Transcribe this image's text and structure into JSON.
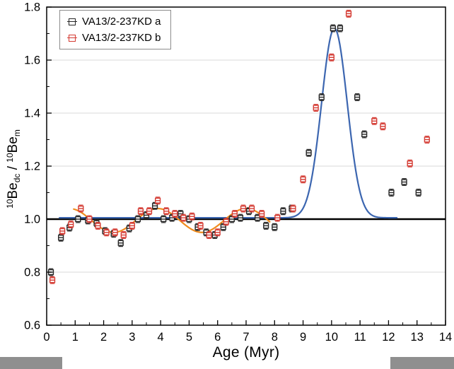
{
  "labels": {
    "ylabel": {
      "sup1": "10",
      "base1": "Be",
      "sub1": "dc",
      "sep": " / ",
      "sup2": "10",
      "base2": "Be",
      "sub2": "m"
    }
  },
  "chart_data": {
    "type": "scatter",
    "title": "",
    "xlabel": "Age (Myr)",
    "ylabel": "10Be_dc / 10Be_m",
    "xlim": [
      0,
      14
    ],
    "ylim": [
      0.6,
      1.8
    ],
    "xticks": [
      0,
      1,
      2,
      3,
      4,
      5,
      6,
      7,
      8,
      9,
      10,
      11,
      12,
      13,
      14
    ],
    "yticks": [
      0.6,
      0.8,
      1.0,
      1.2,
      1.4,
      1.6,
      1.8
    ],
    "ytick_labels": [
      "0.6",
      "0.8",
      "1.0",
      "1.2",
      "1.4",
      "1.6",
      "1.8"
    ],
    "grid": "horizontal",
    "legend_position": "top-left",
    "reference_line": {
      "y": 1.0,
      "color": "#000000",
      "width": 2.4
    },
    "colors": {
      "grid": "#d9d9d9",
      "frame": "#000000",
      "artifact": "#8f8f8f"
    },
    "series": [
      {
        "name": "VA13/2-237KD a",
        "color": "#262626",
        "marker": "half-open-square",
        "yerr": 0.013,
        "points": [
          [
            0.15,
            0.8
          ],
          [
            0.5,
            0.93
          ],
          [
            0.8,
            0.968
          ],
          [
            1.1,
            1.0
          ],
          [
            1.45,
            0.995
          ],
          [
            1.75,
            0.985
          ],
          [
            2.05,
            0.955
          ],
          [
            2.35,
            0.945
          ],
          [
            2.6,
            0.91
          ],
          [
            2.9,
            0.965
          ],
          [
            3.2,
            1.0
          ],
          [
            3.5,
            1.015
          ],
          [
            3.8,
            1.05
          ],
          [
            4.1,
            1.0
          ],
          [
            4.4,
            1.005
          ],
          [
            4.7,
            1.02
          ],
          [
            5.0,
            1.0
          ],
          [
            5.3,
            0.97
          ],
          [
            5.6,
            0.95
          ],
          [
            5.9,
            0.94
          ],
          [
            6.2,
            0.97
          ],
          [
            6.5,
            1.0
          ],
          [
            6.8,
            1.005
          ],
          [
            7.1,
            1.03
          ],
          [
            7.4,
            1.005
          ],
          [
            7.7,
            0.975
          ],
          [
            8.0,
            0.97
          ],
          [
            8.3,
            1.03
          ],
          [
            8.6,
            1.04
          ],
          [
            9.2,
            1.25
          ],
          [
            9.65,
            1.46
          ],
          [
            10.05,
            1.72
          ],
          [
            10.3,
            1.72
          ],
          [
            10.9,
            1.46
          ],
          [
            11.15,
            1.32
          ],
          [
            12.1,
            1.1
          ],
          [
            12.55,
            1.14
          ],
          [
            13.05,
            1.1
          ]
        ]
      },
      {
        "name": "VA13/2-237KD b",
        "color": "#d43a32",
        "marker": "half-open-square",
        "yerr": 0.013,
        "points": [
          [
            0.2,
            0.77
          ],
          [
            0.55,
            0.955
          ],
          [
            0.85,
            0.98
          ],
          [
            1.2,
            1.04
          ],
          [
            1.5,
            1.0
          ],
          [
            1.8,
            0.975
          ],
          [
            2.1,
            0.95
          ],
          [
            2.4,
            0.95
          ],
          [
            2.7,
            0.94
          ],
          [
            3.0,
            0.975
          ],
          [
            3.3,
            1.03
          ],
          [
            3.6,
            1.03
          ],
          [
            3.9,
            1.07
          ],
          [
            4.2,
            1.03
          ],
          [
            4.5,
            1.02
          ],
          [
            4.8,
            1.005
          ],
          [
            5.1,
            1.01
          ],
          [
            5.4,
            0.975
          ],
          [
            5.7,
            0.94
          ],
          [
            6.0,
            0.95
          ],
          [
            6.3,
            0.99
          ],
          [
            6.6,
            1.02
          ],
          [
            6.9,
            1.04
          ],
          [
            7.2,
            1.04
          ],
          [
            7.55,
            1.02
          ],
          [
            8.1,
            1.005
          ],
          [
            8.65,
            1.04
          ],
          [
            9.0,
            1.15
          ],
          [
            9.45,
            1.42
          ],
          [
            10.0,
            1.61
          ],
          [
            10.6,
            1.775
          ],
          [
            11.5,
            1.37
          ],
          [
            11.8,
            1.35
          ],
          [
            12.75,
            1.21
          ],
          [
            13.35,
            1.3
          ]
        ]
      }
    ],
    "fits": [
      {
        "name": "gaussian-fit",
        "type": "gaussian",
        "color": "#3c66b0",
        "width": 2.2,
        "baseline": 1.005,
        "amplitude": 0.715,
        "center": 10.1,
        "sigma": 0.45,
        "x_range": [
          0.45,
          12.3
        ]
      },
      {
        "name": "wiggle-fit",
        "type": "sine",
        "color": "#f08c1e",
        "width": 2.2,
        "mean": 0.995,
        "amplitude": 0.045,
        "period": 3.1,
        "peak_x": 3.9,
        "x_range": [
          0.95,
          7.85
        ]
      }
    ]
  }
}
